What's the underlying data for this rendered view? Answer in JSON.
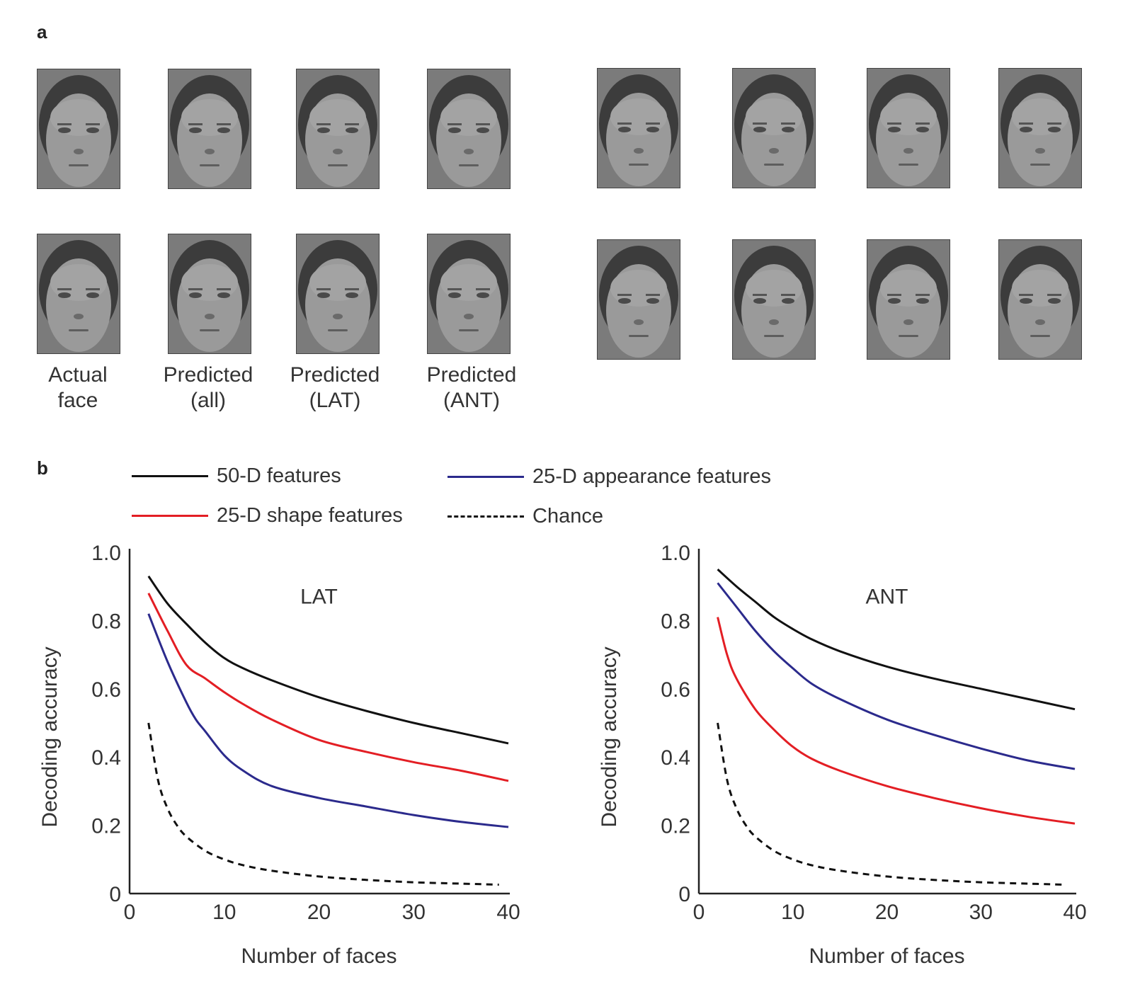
{
  "panel_a": {
    "label": "a",
    "captions": [
      {
        "line1": "Actual",
        "line2": "face"
      },
      {
        "line1": "Predicted",
        "line2": "(all)"
      },
      {
        "line1": "Predicted",
        "line2": "(LAT)"
      },
      {
        "line1": "Predicted",
        "line2": "(ANT)"
      }
    ],
    "face_rows": [
      {
        "group": "left",
        "row": 1,
        "faces": [
          "actual",
          "predicted-all",
          "predicted-lat",
          "predicted-ant"
        ]
      },
      {
        "group": "left",
        "row": 2,
        "faces": [
          "actual",
          "predicted-all",
          "predicted-lat",
          "predicted-ant"
        ]
      },
      {
        "group": "right",
        "row": 1,
        "faces": [
          "actual",
          "predicted-all",
          "predicted-lat",
          "predicted-ant"
        ]
      },
      {
        "group": "right",
        "row": 2,
        "faces": [
          "actual",
          "predicted-all",
          "predicted-lat",
          "predicted-ant"
        ]
      }
    ]
  },
  "panel_b": {
    "label": "b",
    "legend": [
      {
        "label": "50-D features",
        "color": "#111111",
        "style": "solid"
      },
      {
        "label": "25-D appearance features",
        "color": "#2b2a8c",
        "style": "solid"
      },
      {
        "label": "25-D shape features",
        "color": "#e31e24",
        "style": "solid"
      },
      {
        "label": "Chance",
        "color": "#111111",
        "style": "dashed"
      }
    ]
  },
  "chart_data": [
    {
      "type": "line",
      "title": "LAT",
      "xlabel": "Number of faces",
      "ylabel": "Decoding accuracy",
      "xlim": [
        0,
        40
      ],
      "ylim": [
        0,
        1.0
      ],
      "xticks": [
        "0",
        "10",
        "20",
        "30",
        "40"
      ],
      "yticks": [
        "0",
        "0.2",
        "0.4",
        "0.6",
        "0.8",
        "1.0"
      ],
      "xtick_values": [
        0,
        10,
        20,
        30,
        40
      ],
      "ytick_values": [
        0,
        0.2,
        0.4,
        0.6,
        0.8,
        1.0
      ],
      "grid": false,
      "series": [
        {
          "name": "50-D features",
          "color": "#111111",
          "dash": false,
          "x": [
            2,
            4,
            6,
            8,
            10,
            12,
            15,
            20,
            25,
            30,
            35,
            40
          ],
          "y": [
            0.93,
            0.85,
            0.79,
            0.735,
            0.69,
            0.66,
            0.625,
            0.575,
            0.535,
            0.5,
            0.47,
            0.44
          ]
        },
        {
          "name": "25-D shape features",
          "color": "#e31e24",
          "dash": false,
          "x": [
            2,
            4,
            6,
            8,
            10,
            12,
            15,
            20,
            25,
            30,
            35,
            40
          ],
          "y": [
            0.88,
            0.77,
            0.67,
            0.63,
            0.59,
            0.555,
            0.51,
            0.45,
            0.415,
            0.385,
            0.36,
            0.33
          ]
        },
        {
          "name": "25-D appearance features",
          "color": "#2b2a8c",
          "dash": false,
          "x": [
            2,
            4,
            6,
            7,
            8,
            10,
            12,
            15,
            20,
            25,
            30,
            35,
            40
          ],
          "y": [
            0.82,
            0.68,
            0.56,
            0.51,
            0.475,
            0.405,
            0.36,
            0.315,
            0.28,
            0.255,
            0.23,
            0.21,
            0.195
          ]
        },
        {
          "name": "Chance",
          "color": "#111111",
          "dash": true,
          "x": [
            2,
            3,
            4,
            5,
            6,
            8,
            10,
            12,
            15,
            20,
            25,
            30,
            35,
            39
          ],
          "y": [
            0.5,
            0.333,
            0.25,
            0.2,
            0.167,
            0.125,
            0.1,
            0.083,
            0.067,
            0.05,
            0.04,
            0.033,
            0.029,
            0.026
          ]
        }
      ]
    },
    {
      "type": "line",
      "title": "ANT",
      "xlabel": "Number of faces",
      "ylabel": "Decoding accuracy",
      "xlim": [
        0,
        40
      ],
      "ylim": [
        0,
        1.0
      ],
      "xticks": [
        "0",
        "10",
        "20",
        "30",
        "40"
      ],
      "yticks": [
        "0",
        "0.2",
        "0.4",
        "0.6",
        "0.8",
        "1.0"
      ],
      "xtick_values": [
        0,
        10,
        20,
        30,
        40
      ],
      "ytick_values": [
        0,
        0.2,
        0.4,
        0.6,
        0.8,
        1.0
      ],
      "grid": false,
      "series": [
        {
          "name": "50-D features",
          "color": "#111111",
          "dash": false,
          "x": [
            2,
            4,
            6,
            8,
            10,
            12,
            15,
            20,
            25,
            30,
            35,
            40
          ],
          "y": [
            0.95,
            0.9,
            0.855,
            0.81,
            0.775,
            0.745,
            0.71,
            0.665,
            0.63,
            0.6,
            0.57,
            0.54
          ]
        },
        {
          "name": "25-D appearance features",
          "color": "#2b2a8c",
          "dash": false,
          "x": [
            2,
            4,
            6,
            8,
            10,
            12,
            15,
            20,
            25,
            30,
            35,
            40
          ],
          "y": [
            0.91,
            0.84,
            0.77,
            0.71,
            0.66,
            0.615,
            0.57,
            0.51,
            0.465,
            0.425,
            0.39,
            0.365
          ]
        },
        {
          "name": "25-D shape features",
          "color": "#e31e24",
          "dash": false,
          "x": [
            2,
            3,
            4,
            6,
            8,
            10,
            12,
            15,
            20,
            25,
            30,
            35,
            40
          ],
          "y": [
            0.81,
            0.7,
            0.63,
            0.54,
            0.48,
            0.43,
            0.395,
            0.36,
            0.315,
            0.28,
            0.25,
            0.225,
            0.205
          ]
        },
        {
          "name": "Chance",
          "color": "#111111",
          "dash": true,
          "x": [
            2,
            3,
            4,
            5,
            6,
            8,
            10,
            12,
            15,
            20,
            25,
            30,
            35,
            39
          ],
          "y": [
            0.5,
            0.333,
            0.25,
            0.2,
            0.167,
            0.125,
            0.1,
            0.083,
            0.067,
            0.05,
            0.04,
            0.033,
            0.029,
            0.026
          ]
        }
      ]
    }
  ]
}
